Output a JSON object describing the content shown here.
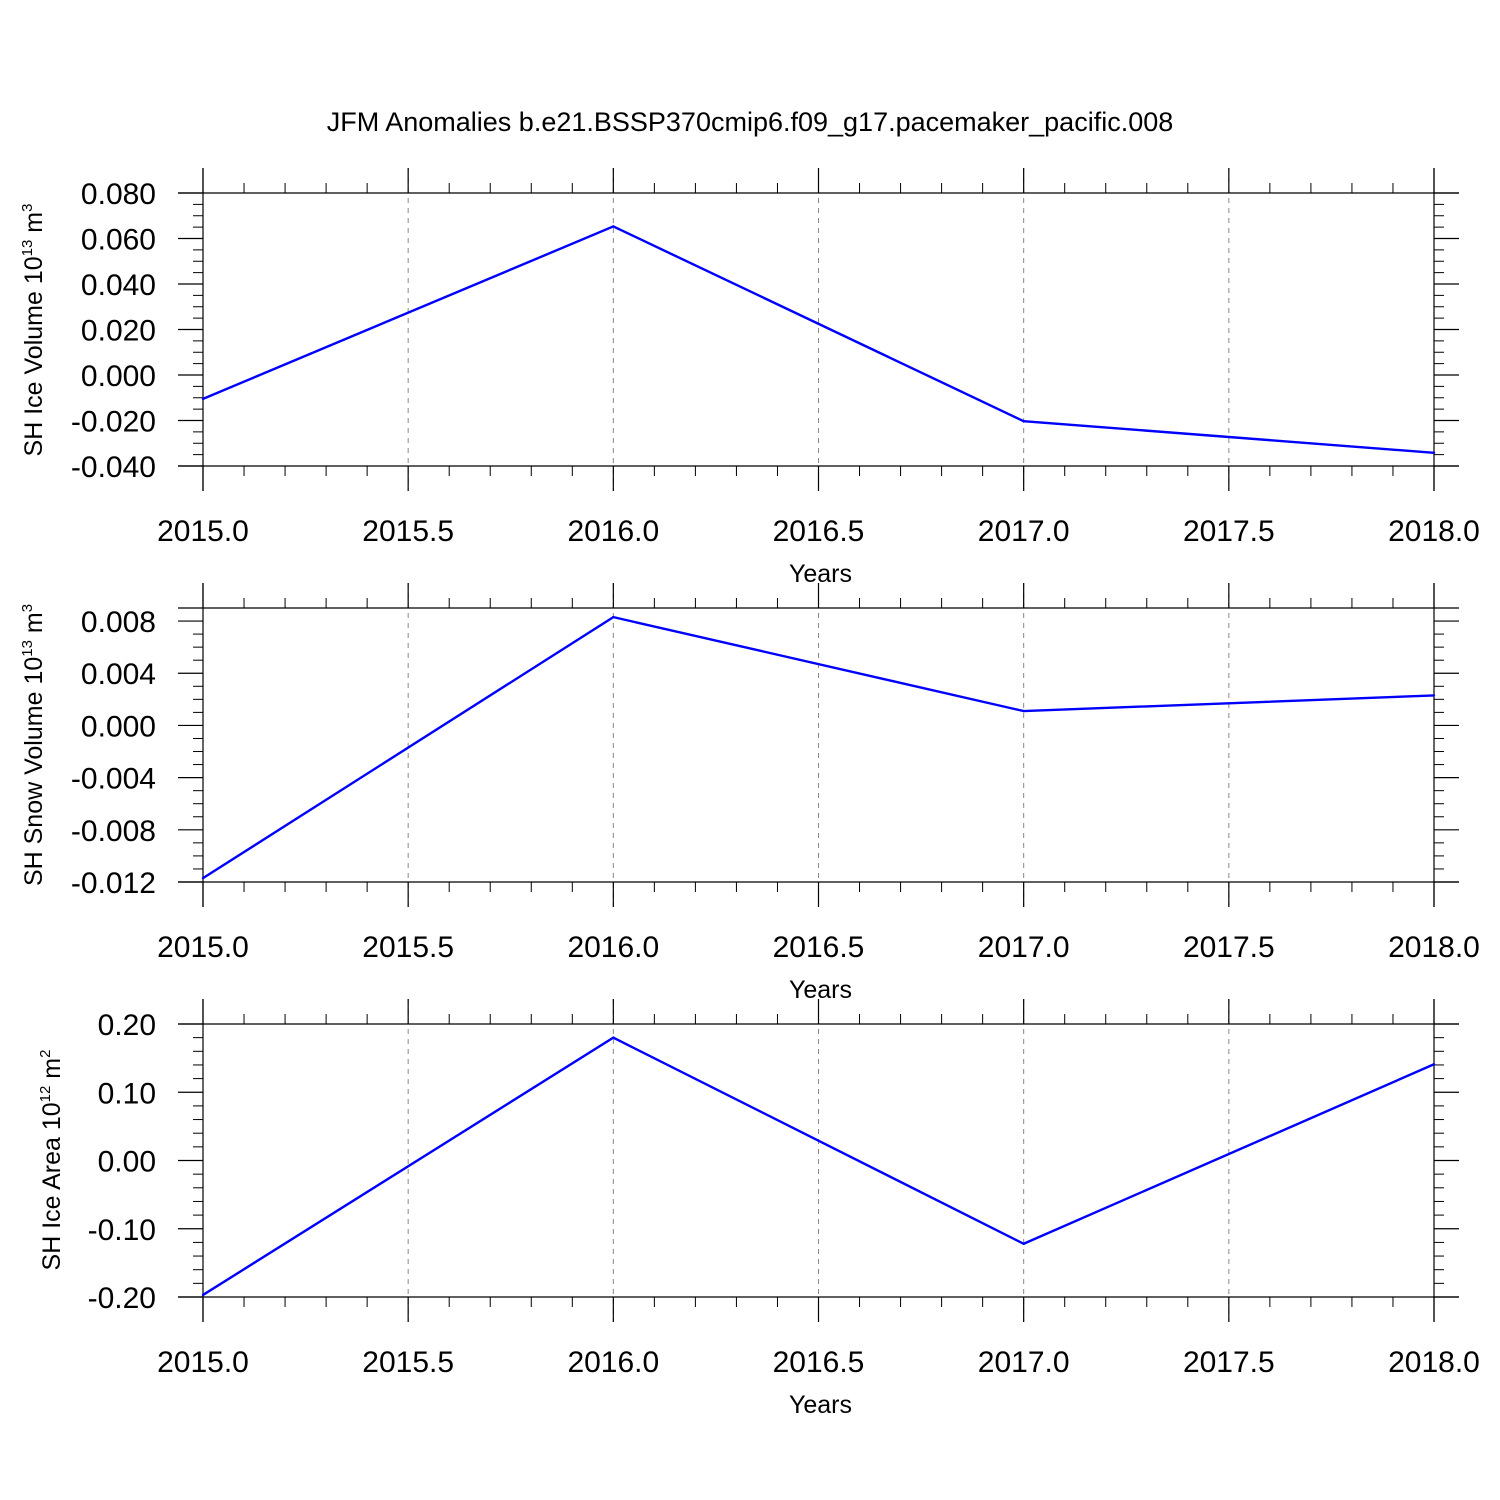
{
  "figure": {
    "title": "JFM Anomalies b.e21.BSSP370cmip6.f09_g17.pacemaker_pacific.008"
  },
  "chart_data": [
    {
      "type": "line",
      "xlabel": "Years",
      "ylabel": {
        "text": "SH Ice Volume 10",
        "sup1": "13",
        "mid": " m",
        "sup2": "3"
      },
      "xlim": [
        2015.0,
        2018.0
      ],
      "ylim": [
        -0.04,
        0.08
      ],
      "xticks": [
        "2015.0",
        "2015.5",
        "2016.0",
        "2016.5",
        "2017.0",
        "2017.5",
        "2018.0"
      ],
      "xtick_values": [
        2015.0,
        2015.5,
        2016.0,
        2016.5,
        2017.0,
        2017.5,
        2018.0
      ],
      "yticks": [
        "-0.040",
        "-0.020",
        "0.000",
        "0.020",
        "0.040",
        "0.060",
        "0.080"
      ],
      "ytick_values": [
        -0.04,
        -0.02,
        0.0,
        0.02,
        0.04,
        0.06,
        0.08
      ],
      "x_minor_step": 0.1,
      "y_minor_step": 0.005,
      "series": [
        {
          "x": [
            2015,
            2016,
            2017,
            2018
          ],
          "y": [
            -0.0105,
            0.0653,
            -0.0203,
            -0.0342
          ],
          "color": "#0000ff"
        }
      ],
      "grid": "x dashed"
    },
    {
      "type": "line",
      "xlabel": "Years",
      "ylabel": {
        "text": "SH Snow Volume 10",
        "sup1": "13",
        "mid": " m",
        "sup2": "3"
      },
      "xlim": [
        2015.0,
        2018.0
      ],
      "ylim": [
        -0.012,
        0.009
      ],
      "xticks": [
        "2015.0",
        "2015.5",
        "2016.0",
        "2016.5",
        "2017.0",
        "2017.5",
        "2018.0"
      ],
      "xtick_values": [
        2015.0,
        2015.5,
        2016.0,
        2016.5,
        2017.0,
        2017.5,
        2018.0
      ],
      "yticks": [
        "-0.012",
        "-0.008",
        "-0.004",
        "0.000",
        "0.004",
        "0.008"
      ],
      "ytick_values": [
        -0.012,
        -0.008,
        -0.004,
        0.0,
        0.004,
        0.008
      ],
      "x_minor_step": 0.1,
      "y_minor_step": 0.001,
      "series": [
        {
          "x": [
            2015,
            2016,
            2017,
            2018
          ],
          "y": [
            -0.0117,
            0.0083,
            0.0011,
            0.0023
          ],
          "color": "#0000ff"
        }
      ],
      "grid": "x dashed"
    },
    {
      "type": "line",
      "xlabel": "Years",
      "ylabel": {
        "text": "SH Ice Area 10",
        "sup1": "12",
        "mid": " m",
        "sup2": "2"
      },
      "xlim": [
        2015.0,
        2018.0
      ],
      "ylim": [
        -0.2,
        0.2
      ],
      "xticks": [
        "2015.0",
        "2015.5",
        "2016.0",
        "2016.5",
        "2017.0",
        "2017.5",
        "2018.0"
      ],
      "xtick_values": [
        2015.0,
        2015.5,
        2016.0,
        2016.5,
        2017.0,
        2017.5,
        2018.0
      ],
      "yticks": [
        "-0.20",
        "-0.10",
        "0.00",
        "0.10",
        "0.20"
      ],
      "ytick_values": [
        -0.2,
        -0.1,
        0.0,
        0.1,
        0.2
      ],
      "x_minor_step": 0.1,
      "y_minor_step": 0.02,
      "series": [
        {
          "x": [
            2015,
            2016,
            2017,
            2018
          ],
          "y": [
            -0.197,
            0.18,
            -0.122,
            0.141
          ],
          "color": "#0000ff"
        }
      ],
      "grid": "x dashed"
    }
  ]
}
